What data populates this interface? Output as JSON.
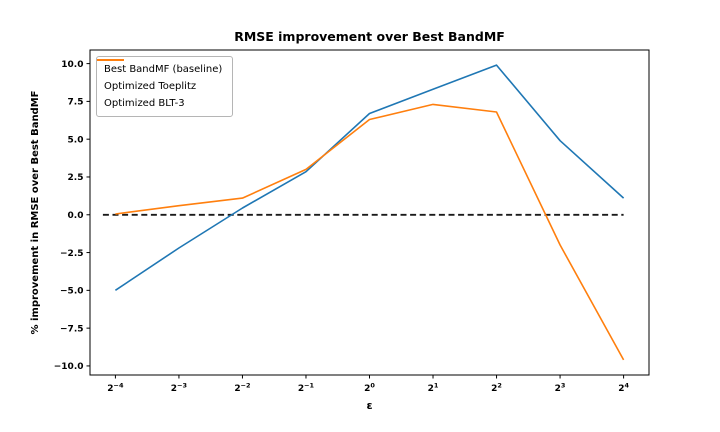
{
  "chart_data": {
    "type": "line",
    "title": "RMSE improvement over Best BandMF",
    "xlabel": "ε",
    "ylabel": "% improvement in RMSE over Best BandMF",
    "x_scale": "log2",
    "x_tick_base": "2",
    "x_tick_exponents": [
      "−4",
      "−3",
      "−2",
      "−1",
      "0",
      "1",
      "2",
      "3",
      "4"
    ],
    "x_values_as_powers_of_2": [
      -4,
      -3,
      -2,
      -1,
      0,
      1,
      2,
      3,
      4
    ],
    "y_ticks": [
      10.0,
      7.5,
      5.0,
      2.5,
      0.0,
      -2.5,
      -5.0,
      -7.5,
      -10.0
    ],
    "y_tick_labels": [
      "10.0",
      "7.5",
      "5.0",
      "2.5",
      "0.0",
      "−2.5",
      "−5.0",
      "−7.5",
      "−10.0"
    ],
    "ylim": [
      -10.6,
      10.9
    ],
    "xlim_index": [
      -0.4,
      8.4
    ],
    "grid": false,
    "legend_position": "upper left",
    "axis_color": "#000000",
    "background_color": "#ffffff",
    "series": [
      {
        "name": "Best BandMF (baseline)",
        "style": "dashed",
        "color": "#1a1a1a",
        "values": [
          0,
          0,
          0,
          0,
          0,
          0,
          0,
          0,
          0
        ]
      },
      {
        "name": "Optimized Toeplitz",
        "style": "solid",
        "color": "#1f77b4",
        "values": [
          -5.0,
          -2.2,
          0.45,
          2.85,
          6.7,
          8.3,
          9.9,
          4.9,
          1.1
        ]
      },
      {
        "name": "Optimized BLT-3",
        "style": "solid",
        "color": "#ff7f0e",
        "values": [
          0.05,
          0.6,
          1.1,
          3.0,
          6.3,
          7.3,
          6.8,
          -2.0,
          -9.6
        ]
      }
    ]
  }
}
